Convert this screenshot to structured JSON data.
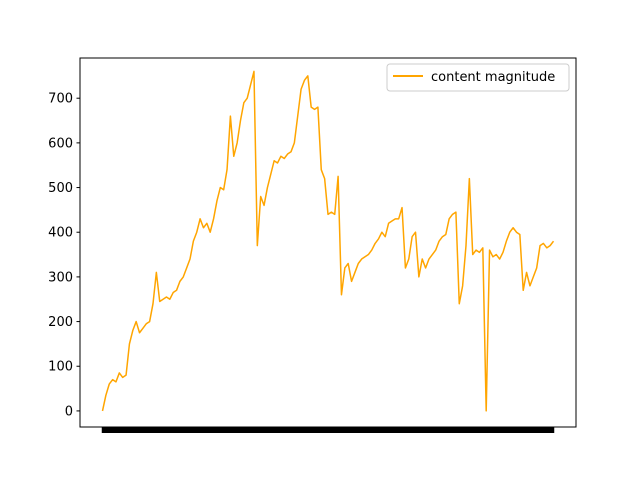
{
  "chart_data": {
    "type": "line",
    "title": "",
    "xlabel": "",
    "ylabel": "",
    "ylim": [
      -36,
      790
    ],
    "yticks": [
      0,
      100,
      200,
      300,
      400,
      500,
      600,
      700
    ],
    "grid": false,
    "legend_position": "top-right",
    "series": [
      {
        "name": "content magnitude",
        "color": "#ffa500",
        "values": [
          0,
          35,
          60,
          70,
          65,
          85,
          75,
          80,
          150,
          180,
          200,
          175,
          185,
          195,
          200,
          240,
          310,
          245,
          250,
          255,
          250,
          265,
          270,
          290,
          300,
          320,
          340,
          380,
          400,
          430,
          410,
          420,
          400,
          430,
          470,
          500,
          495,
          540,
          660,
          570,
          600,
          650,
          690,
          700,
          730,
          760,
          370,
          480,
          460,
          500,
          530,
          560,
          555,
          570,
          565,
          575,
          580,
          600,
          660,
          720,
          740,
          750,
          680,
          675,
          680,
          540,
          520,
          440,
          445,
          440,
          525,
          260,
          320,
          330,
          290,
          310,
          330,
          340,
          345,
          350,
          360,
          375,
          385,
          400,
          390,
          420,
          425,
          430,
          430,
          455,
          320,
          340,
          390,
          400,
          300,
          340,
          320,
          340,
          350,
          360,
          380,
          390,
          395,
          430,
          440,
          445,
          240,
          280,
          370,
          520,
          350,
          360,
          355,
          365,
          0,
          360,
          345,
          350,
          340,
          355,
          380,
          400,
          410,
          400,
          395,
          270,
          310,
          280,
          300,
          320,
          370,
          375,
          365,
          370,
          380
        ]
      }
    ]
  }
}
